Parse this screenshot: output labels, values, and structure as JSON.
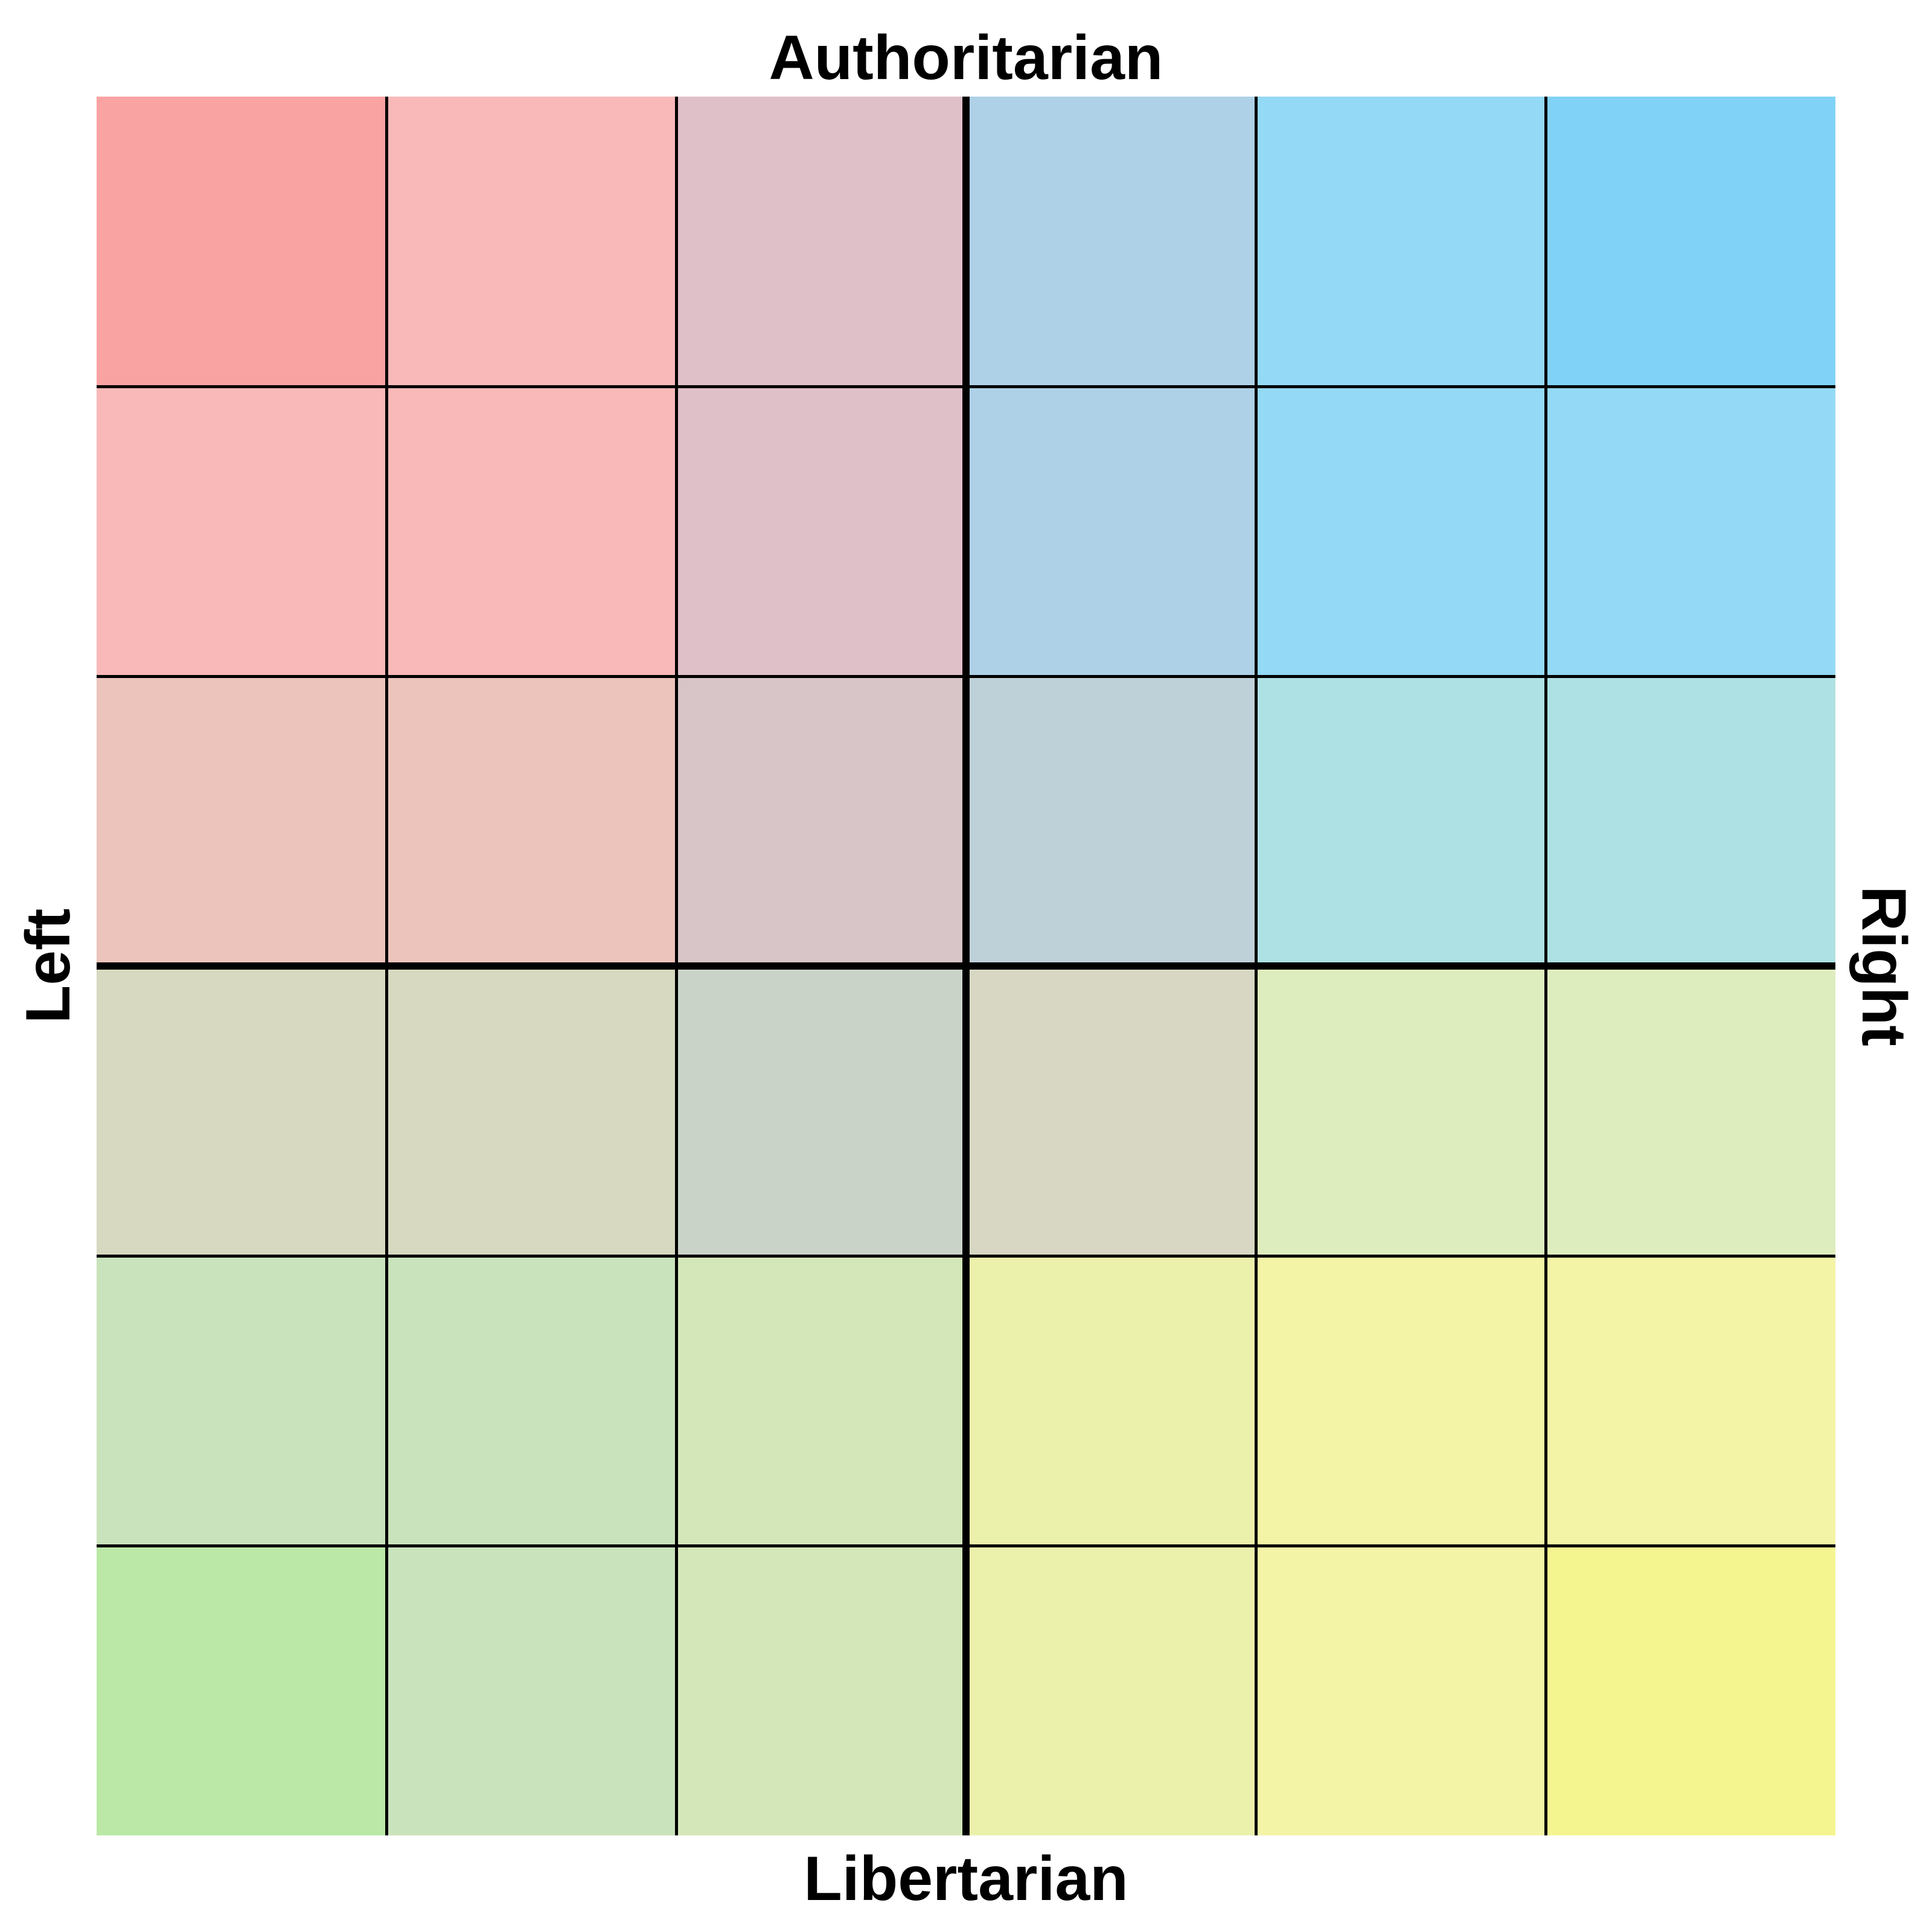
{
  "labels": {
    "top": "Authoritarian",
    "bottom": "Libertarian",
    "left": "Left",
    "right": "Right"
  },
  "grid": {
    "rows": 6,
    "cols": 6,
    "line_color": "#000000",
    "colors": [
      [
        "#f9a3a3",
        "#f9b9b9",
        "#dfc0c8",
        "#aed1e7",
        "#94d9f5",
        "#80d3f7"
      ],
      [
        "#f9b9b9",
        "#f9b9b9",
        "#dfc0c8",
        "#aed1e7",
        "#94d9f5",
        "#94d9f5"
      ],
      [
        "#ecc4bc",
        "#ecc4bc",
        "#d7c5c8",
        "#bfd1d8",
        "#ade1e4",
        "#ade1e4"
      ],
      [
        "#d7d9c0",
        "#d7d9c0",
        "#cad3c8",
        "#d8d7c4",
        "#deedbe",
        "#deedbe"
      ],
      [
        "#c9e3bc",
        "#c9e3bc",
        "#d4e7b8",
        "#ebf0ab",
        "#f3f4a6",
        "#f3f4a6"
      ],
      [
        "#bbe8a6",
        "#c9e3bc",
        "#d4e7b8",
        "#ebf0ab",
        "#f3f4a6",
        "#f5f590"
      ]
    ]
  }
}
